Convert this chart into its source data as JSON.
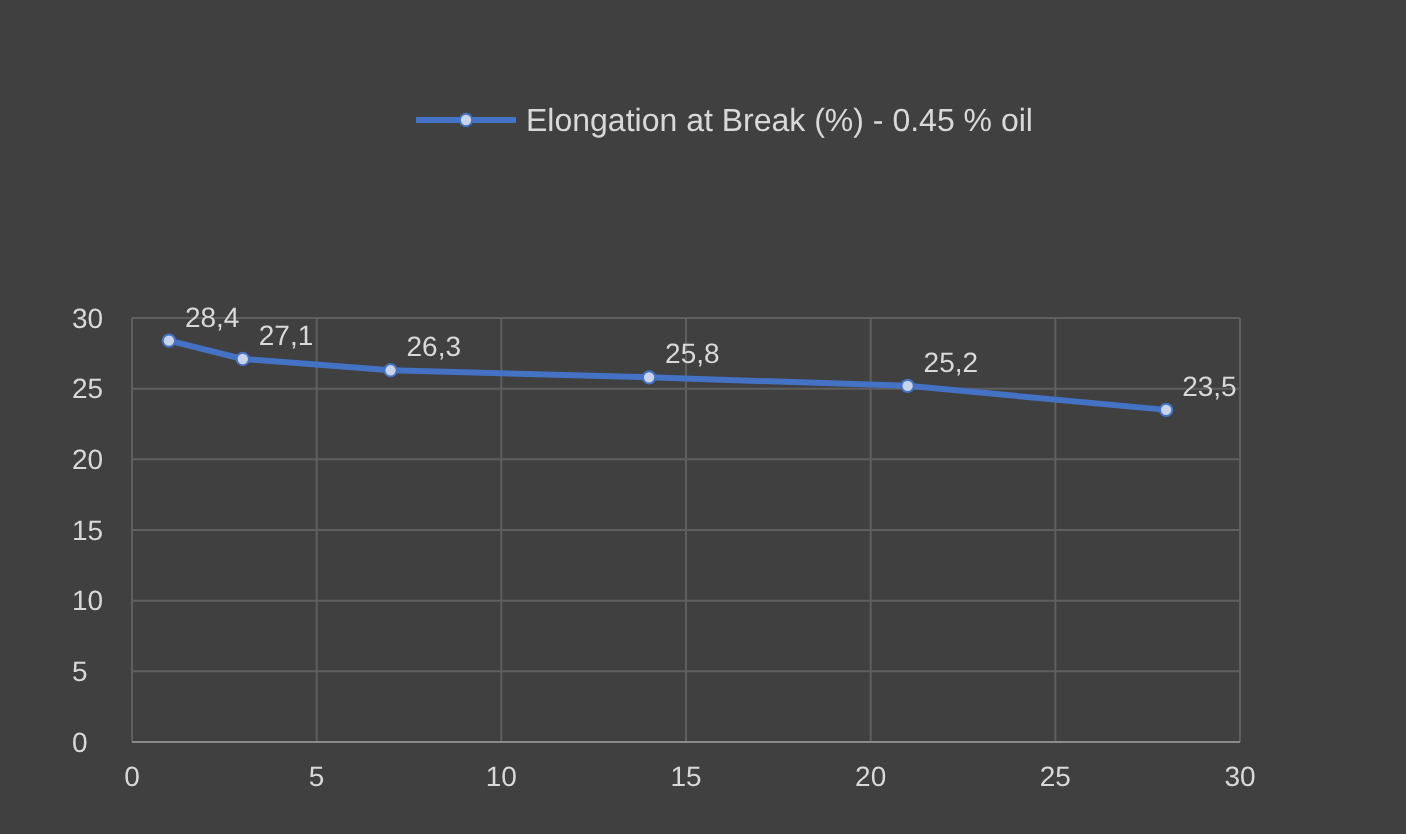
{
  "chart_data": {
    "type": "line",
    "x": [
      1,
      3,
      7,
      14,
      21,
      28
    ],
    "series": [
      {
        "name": "Elongation at Break (%) - 0.45 % oil",
        "color": "#4472c4",
        "values": [
          28.4,
          27.1,
          26.3,
          25.8,
          25.2,
          23.5
        ],
        "value_labels": [
          "28,4",
          "27,1",
          "26,3",
          "25,8",
          "25,2",
          "23,5"
        ]
      }
    ],
    "xlim": [
      0,
      30
    ],
    "xticks": [
      0,
      5,
      10,
      15,
      20,
      25,
      30
    ],
    "ylim": [
      0,
      30
    ],
    "yticks": [
      0,
      5,
      10,
      15,
      20,
      25,
      30
    ],
    "grid": true,
    "legend": "top",
    "marker": "circle",
    "line_style": "solid"
  }
}
